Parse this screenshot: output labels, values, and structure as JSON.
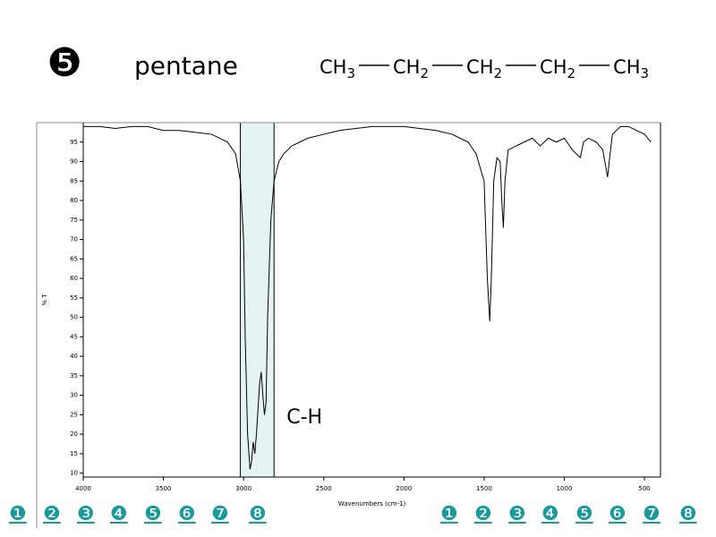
{
  "header": {
    "number": "❺",
    "name": "pentane",
    "formula": [
      {
        "base": "CH",
        "sub": "3"
      },
      {
        "base": "CH",
        "sub": "2"
      },
      {
        "base": "CH",
        "sub": "2"
      },
      {
        "base": "CH",
        "sub": "2"
      },
      {
        "base": "CH",
        "sub": "3"
      }
    ]
  },
  "nav_left": [
    "❶",
    "❷",
    "❸",
    "❹",
    "❺",
    "❻",
    "❼",
    "❽"
  ],
  "nav_right": [
    "❶",
    "❷",
    "❸",
    "❹",
    "❺",
    "❻",
    "❼",
    "❽"
  ],
  "chart_data": {
    "type": "line",
    "x_label": "Wavenumbers (cm-1)",
    "y_label": "% T",
    "color": "#000000",
    "annotation": "C-H",
    "highlight": [
      3020,
      2810
    ],
    "highlight_color": "#e6f3f5",
    "xlim": [
      4000,
      400
    ],
    "ylim": [
      9,
      100
    ],
    "xticks": [
      4000,
      3500,
      3000,
      2500,
      2000,
      1500,
      1000,
      500
    ],
    "yticks": [
      10,
      15,
      20,
      25,
      30,
      35,
      40,
      45,
      50,
      55,
      60,
      65,
      70,
      75,
      80,
      85,
      90,
      95
    ],
    "series": [
      {
        "name": "pentane",
        "x": [
          4000,
          3900,
          3800,
          3700,
          3600,
          3500,
          3400,
          3300,
          3200,
          3100,
          3050,
          3020,
          3000,
          2990,
          2975,
          2960,
          2950,
          2940,
          2930,
          2920,
          2900,
          2890,
          2880,
          2870,
          2860,
          2850,
          2830,
          2810,
          2780,
          2750,
          2700,
          2650,
          2600,
          2500,
          2400,
          2200,
          2000,
          1800,
          1700,
          1600,
          1550,
          1500,
          1480,
          1465,
          1455,
          1440,
          1420,
          1400,
          1390,
          1380,
          1370,
          1350,
          1300,
          1250,
          1200,
          1150,
          1100,
          1050,
          1000,
          950,
          900,
          880,
          850,
          800,
          760,
          730,
          720,
          700,
          650,
          600,
          550,
          500,
          460
        ],
        "values": [
          99,
          99,
          98.5,
          99,
          99,
          98,
          98,
          97.5,
          97,
          95,
          92,
          85,
          70,
          45,
          20,
          11,
          13,
          18,
          15,
          20,
          33,
          36,
          30,
          25,
          28,
          50,
          75,
          85,
          90,
          92,
          94,
          95,
          96,
          97,
          98,
          99,
          99,
          98,
          97,
          95,
          92,
          85,
          60,
          49,
          60,
          85,
          91,
          90,
          80,
          73,
          85,
          93,
          94,
          95,
          96,
          94,
          96,
          95,
          96,
          93,
          91,
          95,
          96,
          95,
          93,
          86,
          90,
          97,
          99,
          99,
          98,
          97,
          95
        ]
      }
    ]
  }
}
